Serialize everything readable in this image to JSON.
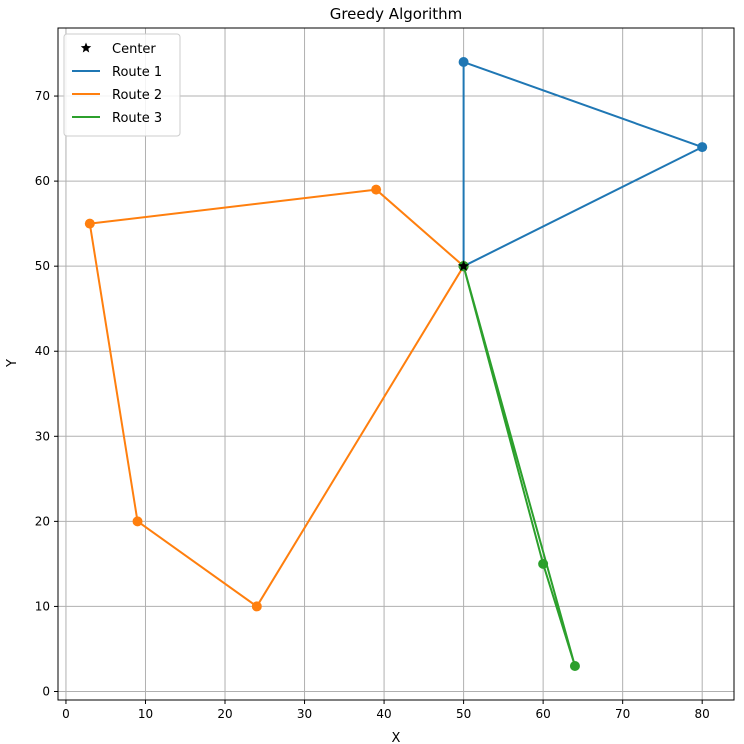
{
  "chart_data": {
    "type": "line",
    "title": "Greedy Algorithm",
    "xlabel": "X",
    "ylabel": "Y",
    "xlim": [
      -1,
      84
    ],
    "ylim": [
      -1,
      78
    ],
    "xticks": [
      0,
      10,
      20,
      30,
      40,
      50,
      60,
      70,
      80
    ],
    "yticks": [
      0,
      10,
      20,
      30,
      40,
      50,
      60,
      70
    ],
    "grid": true,
    "legend_position": "top-left",
    "center": {
      "name": "Center",
      "x": 50,
      "y": 50,
      "color": "#000000"
    },
    "series": [
      {
        "name": "Route 1",
        "color": "#1f77b4",
        "x": [
          50,
          50,
          80,
          50
        ],
        "y": [
          50,
          74,
          64,
          50
        ]
      },
      {
        "name": "Route 2",
        "color": "#ff7f0e",
        "x": [
          50,
          39,
          3,
          9,
          24,
          50
        ],
        "y": [
          50,
          59,
          55,
          20,
          10,
          50
        ]
      },
      {
        "name": "Route 3",
        "color": "#2ca02c",
        "x": [
          50,
          60,
          64,
          50
        ],
        "y": [
          50,
          15,
          3,
          50
        ]
      }
    ]
  }
}
